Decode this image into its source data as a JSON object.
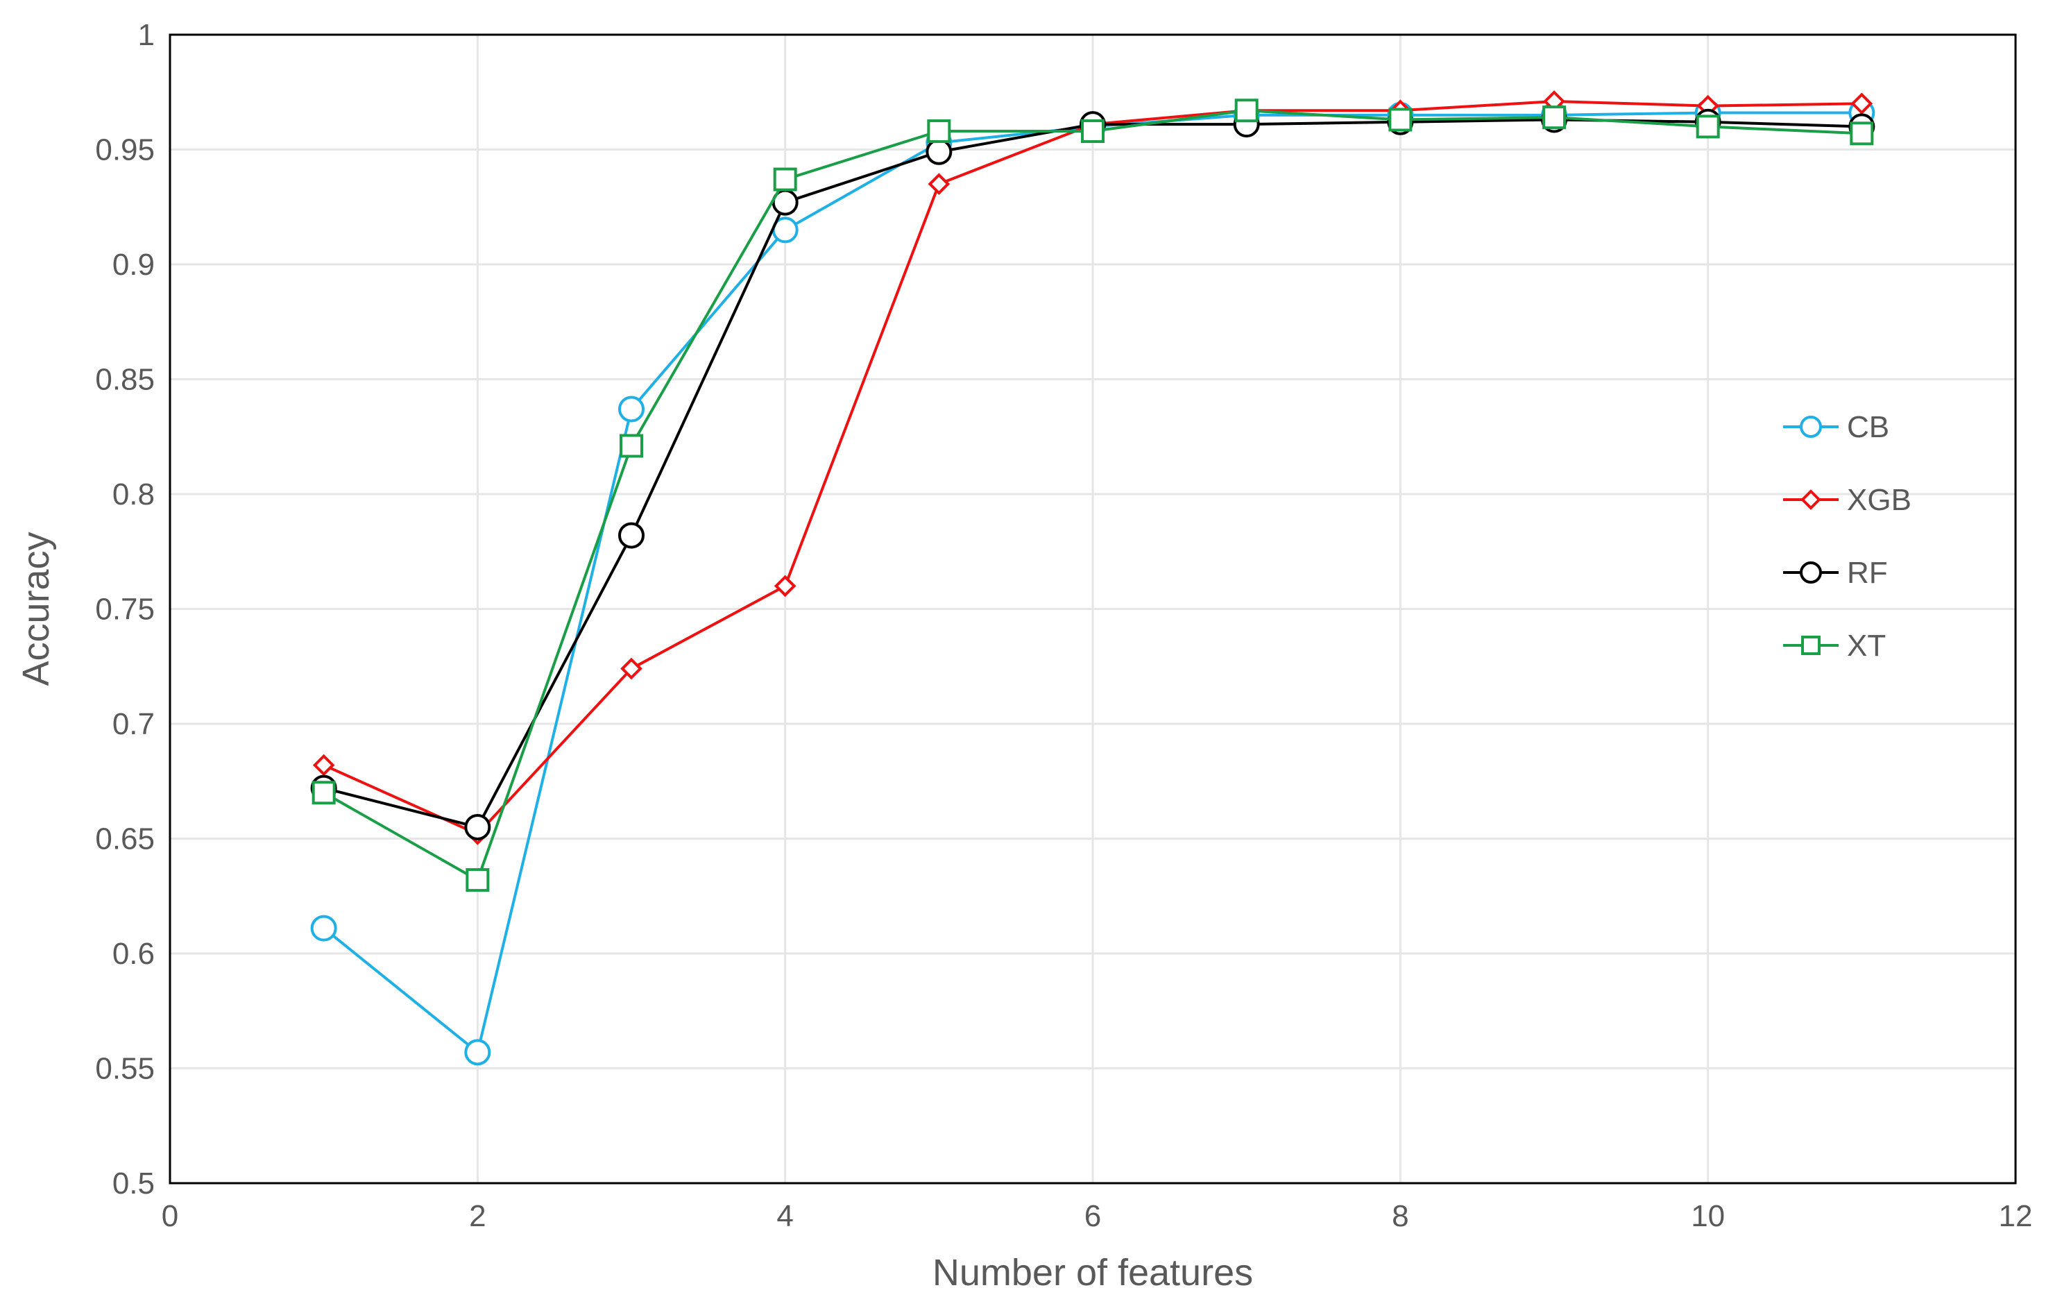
{
  "chart_data": {
    "type": "line",
    "title": "",
    "xlabel": "Number of features",
    "ylabel": "Accuracy",
    "xlim": [
      0,
      12
    ],
    "ylim": [
      0.5,
      1
    ],
    "xticks": [
      0,
      2,
      4,
      6,
      8,
      10,
      12
    ],
    "xtick_labels": [
      "0",
      "2",
      "4",
      "6",
      "8",
      "10",
      "12"
    ],
    "yticks": [
      0.5,
      0.55,
      0.6,
      0.65,
      0.7,
      0.75,
      0.8,
      0.85,
      0.9,
      0.95,
      1
    ],
    "ytick_labels": [
      "0.5",
      "0.55",
      "0.6",
      "0.65",
      "0.7",
      "0.75",
      "0.8",
      "0.85",
      "0.9",
      "0.95",
      "1"
    ],
    "grid": true,
    "legend_position": "right",
    "x": [
      1,
      2,
      3,
      4,
      5,
      6,
      7,
      8,
      9,
      10,
      11
    ],
    "series": [
      {
        "name": "CB",
        "color": "#1fb0e6",
        "marker": "circle",
        "values": [
          0.611,
          0.557,
          0.837,
          0.915,
          0.953,
          0.96,
          0.965,
          0.965,
          0.965,
          0.966,
          0.966
        ]
      },
      {
        "name": "XGB",
        "color": "#ee1111",
        "marker": "diamond",
        "values": [
          0.682,
          0.652,
          0.724,
          0.76,
          0.935,
          0.961,
          0.967,
          0.967,
          0.971,
          0.969,
          0.97
        ]
      },
      {
        "name": "RF",
        "color": "#000000",
        "marker": "circle",
        "values": [
          0.672,
          0.655,
          0.782,
          0.927,
          0.949,
          0.961,
          0.961,
          0.962,
          0.963,
          0.962,
          0.96
        ]
      },
      {
        "name": "XT",
        "color": "#1a9e48",
        "marker": "square",
        "values": [
          0.67,
          0.632,
          0.821,
          0.937,
          0.958,
          0.958,
          0.967,
          0.963,
          0.964,
          0.96,
          0.957
        ]
      }
    ]
  }
}
